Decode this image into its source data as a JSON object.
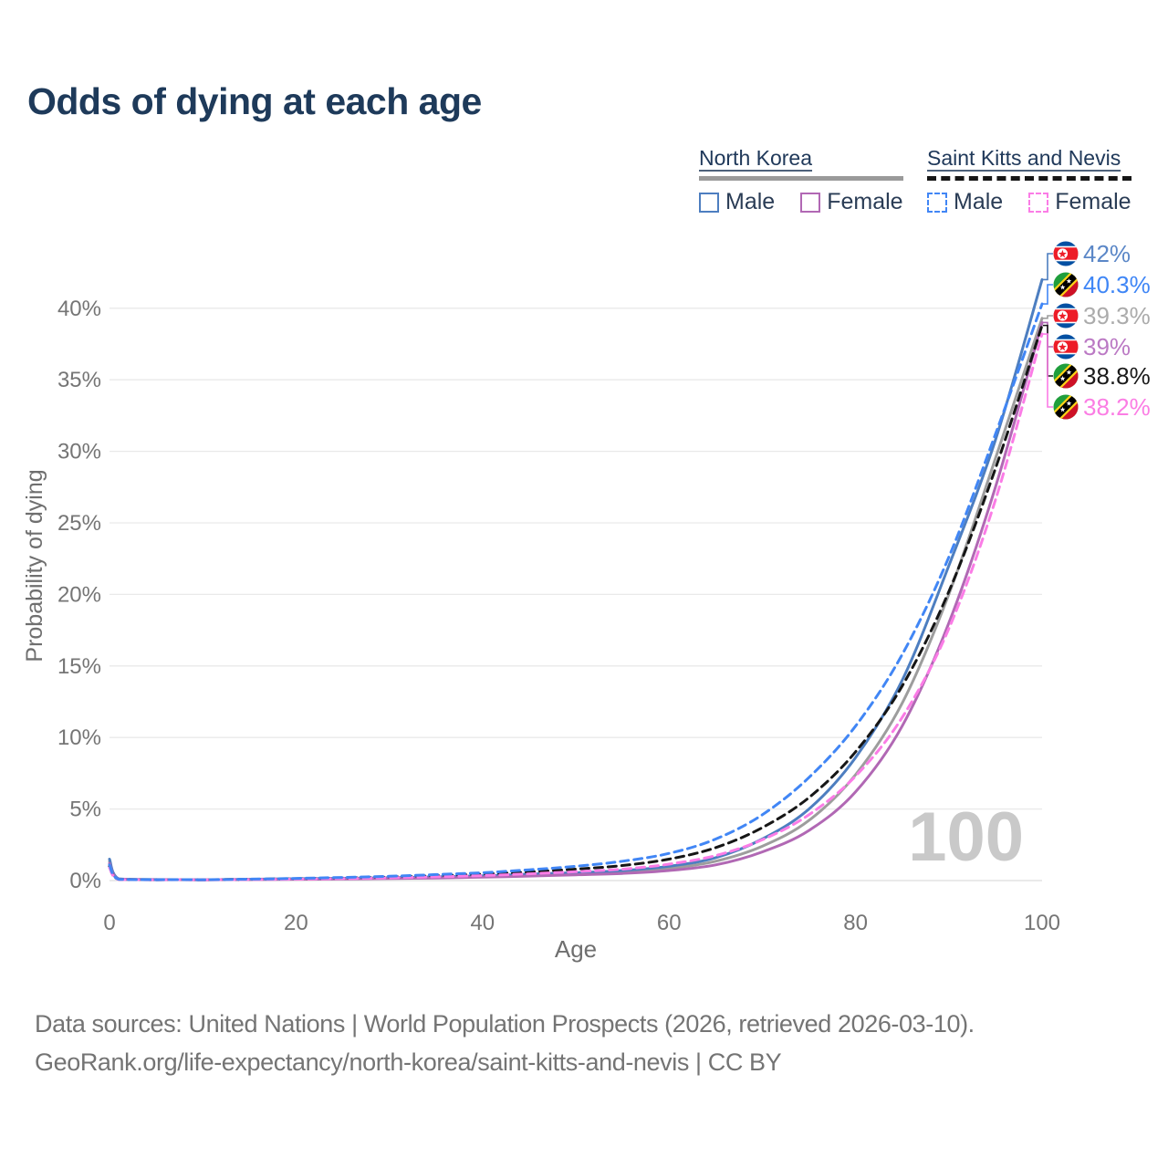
{
  "title": "Odds of dying at each age",
  "legend": {
    "groups": [
      {
        "name": "North Korea",
        "line_style": "solid",
        "sample_color": "#9a9a9a",
        "items": [
          {
            "label": "Male",
            "color": "#4d7ec0",
            "style": "solid"
          },
          {
            "label": "Female",
            "color": "#b168b4",
            "style": "solid"
          }
        ]
      },
      {
        "name": "Saint Kitts and Nevis",
        "line_style": "dashed",
        "sample_color": "#161616",
        "items": [
          {
            "label": "Male",
            "color": "#4186f5",
            "style": "dashed"
          },
          {
            "label": "Female",
            "color": "#fb7ce6",
            "style": "dashed"
          }
        ]
      }
    ]
  },
  "chart_data": {
    "type": "line",
    "title": "Odds of dying at each age",
    "xlabel": "Age",
    "ylabel": "Probability of dying",
    "xlim": [
      0,
      100
    ],
    "ylim": [
      0,
      44
    ],
    "x_ticks": [
      0,
      20,
      40,
      60,
      80,
      100
    ],
    "y_ticks": [
      "0%",
      "5%",
      "10%",
      "15%",
      "20%",
      "25%",
      "30%",
      "35%",
      "40%"
    ],
    "grid": "horizontal",
    "watermark_age": "100",
    "ages": [
      0,
      1,
      5,
      10,
      15,
      20,
      25,
      30,
      35,
      40,
      45,
      50,
      55,
      60,
      65,
      70,
      75,
      80,
      85,
      90,
      95,
      100
    ],
    "series": [
      {
        "id": "nk-male",
        "country": "North Korea",
        "sex": "Male",
        "flag": "north-korea",
        "dash": false,
        "color": "#4d7ec0",
        "label_color": "#5b87c7",
        "end_label": "42%",
        "values": [
          1.5,
          0.12,
          0.07,
          0.06,
          0.09,
          0.13,
          0.16,
          0.2,
          0.26,
          0.33,
          0.45,
          0.55,
          0.7,
          1.0,
          1.6,
          2.9,
          5.0,
          8.6,
          14.0,
          22.0,
          30.8,
          42.0
        ]
      },
      {
        "id": "skn-male",
        "country": "Saint Kitts and Nevis",
        "sex": "Male",
        "flag": "saint-kitts-and-nevis",
        "dash": true,
        "color": "#4186f5",
        "label_color": "#3f86f6",
        "end_label": "40.3%",
        "values": [
          1.1,
          0.09,
          0.06,
          0.06,
          0.1,
          0.15,
          0.22,
          0.3,
          0.42,
          0.55,
          0.75,
          1.0,
          1.35,
          1.9,
          2.9,
          4.6,
          7.2,
          10.8,
          15.8,
          22.6,
          31.2,
          40.3
        ]
      },
      {
        "id": "nk-total",
        "country": "North Korea",
        "sex": "Both",
        "flag": "north-korea",
        "dash": false,
        "color": "#9d9d9d",
        "label_color": "#ababab",
        "end_label": "39.3%",
        "values": [
          1.35,
          0.11,
          0.065,
          0.055,
          0.08,
          0.11,
          0.13,
          0.17,
          0.22,
          0.28,
          0.38,
          0.47,
          0.6,
          0.85,
          1.35,
          2.4,
          4.2,
          7.4,
          12.4,
          20.0,
          29.5,
          39.3
        ]
      },
      {
        "id": "nk-female",
        "country": "North Korea",
        "sex": "Female",
        "flag": "north-korea",
        "dash": false,
        "color": "#b168b4",
        "label_color": "#bb79c4",
        "end_label": "39%",
        "values": [
          1.2,
          0.1,
          0.06,
          0.05,
          0.07,
          0.09,
          0.11,
          0.14,
          0.18,
          0.24,
          0.31,
          0.4,
          0.5,
          0.7,
          1.1,
          2.0,
          3.5,
          6.2,
          10.8,
          18.0,
          27.5,
          39.0
        ]
      },
      {
        "id": "skn-total",
        "country": "Saint Kitts and Nevis",
        "sex": "Both",
        "flag": "saint-kitts-and-nevis",
        "dash": true,
        "color": "#161616",
        "label_color": "#1a1a1a",
        "end_label": "38.8%",
        "values": [
          1.0,
          0.08,
          0.055,
          0.055,
          0.09,
          0.13,
          0.18,
          0.25,
          0.34,
          0.45,
          0.6,
          0.8,
          1.05,
          1.5,
          2.3,
          3.7,
          5.8,
          9.0,
          13.6,
          20.2,
          28.8,
          38.8
        ]
      },
      {
        "id": "skn-female",
        "country": "Saint Kitts and Nevis",
        "sex": "Female",
        "flag": "saint-kitts-and-nevis",
        "dash": true,
        "color": "#fb7ce6",
        "label_color": "#fb7de4",
        "end_label": "38.2%",
        "values": [
          0.9,
          0.07,
          0.05,
          0.05,
          0.07,
          0.1,
          0.14,
          0.19,
          0.26,
          0.35,
          0.47,
          0.62,
          0.8,
          1.15,
          1.75,
          2.85,
          4.6,
          7.3,
          11.4,
          17.6,
          26.6,
          38.2
        ]
      }
    ],
    "flag_colors": {
      "north_korea_blue": "#024FA2",
      "north_korea_red": "#ED1C27",
      "skn_green": "#1f9e3c",
      "skn_red": "#CE1126",
      "skn_yellow": "#FCD116",
      "skn_black": "#000000"
    }
  },
  "footer": {
    "line1": "Data sources: United Nations | World Population Prospects (2026, retrieved 2026-03-10).",
    "line2": "GeoRank.org/life-expectancy/north-korea/saint-kitts-and-nevis | CC BY"
  }
}
